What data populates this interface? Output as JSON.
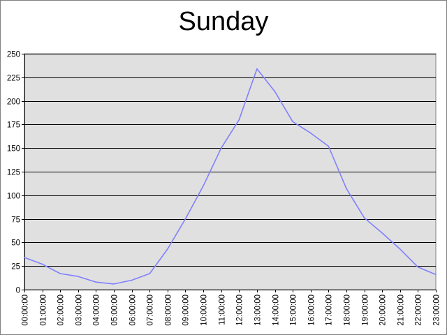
{
  "chart_data": {
    "type": "line",
    "title": "Sunday",
    "xlabel": "",
    "ylabel": "",
    "categories": [
      "00:00:00",
      "01:00:00",
      "02:00:00",
      "03:00:00",
      "04:00:00",
      "05:00:00",
      "06:00:00",
      "07:00:00",
      "08:00:00",
      "09:00:00",
      "10:00:00",
      "11:00:00",
      "12:00:00",
      "13:00:00",
      "14:00:00",
      "15:00:00",
      "16:00:00",
      "17:00:00",
      "18:00:00",
      "19:00:00",
      "20:00:00",
      "21:00:00",
      "22:00:00",
      "23:00:00"
    ],
    "series": [
      {
        "values": [
          34,
          27,
          17,
          14,
          8,
          6,
          10,
          17,
          43,
          75,
          110,
          150,
          180,
          234,
          210,
          178,
          166,
          152,
          107,
          76,
          60,
          43,
          24,
          16
        ]
      }
    ],
    "ylim": [
      0,
      250
    ],
    "yticks": [
      0,
      25,
      50,
      75,
      100,
      125,
      150,
      175,
      200,
      225,
      250
    ],
    "grid": true,
    "legend": "none",
    "colors": {
      "line": "#8080ff",
      "plot_bg": "#e0e0e0",
      "grid": "#000000",
      "frame": "#808080"
    }
  }
}
